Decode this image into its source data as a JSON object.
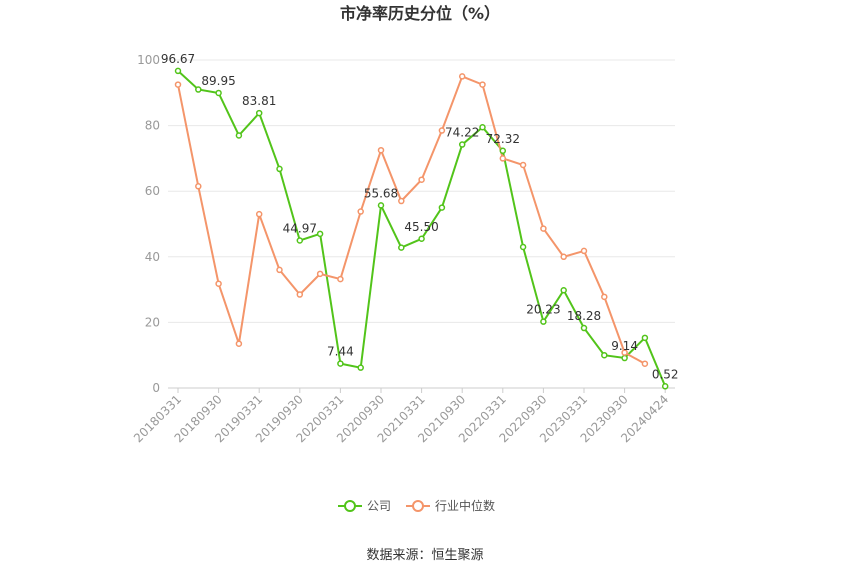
{
  "chart_data": {
    "type": "line",
    "title": "市净率历史分位（%）",
    "xlabel": "",
    "ylabel": "",
    "ylim": [
      0,
      100
    ],
    "yticks": [
      0,
      20,
      40,
      60,
      80,
      100
    ],
    "grid": true,
    "legend_position": "bottom",
    "x": [
      "20180331",
      "20180630",
      "20180930",
      "20181231",
      "20190331",
      "20190630",
      "20190930",
      "20191231",
      "20200331",
      "20200630",
      "20200930",
      "20201231",
      "20210331",
      "20210630",
      "20210930",
      "20211231",
      "20220331",
      "20220630",
      "20220930",
      "20221231",
      "20230331",
      "20230630",
      "20230930",
      "20231231",
      "20240424"
    ],
    "xticks": [
      "20180331",
      "20180930",
      "20190331",
      "20190930",
      "20200331",
      "20200930",
      "20210331",
      "20210930",
      "20220331",
      "20220930",
      "20230331",
      "20230930",
      "20240424"
    ],
    "series": [
      {
        "name": "公司",
        "color": "#52c41a",
        "values": [
          96.67,
          91.0,
          89.95,
          77.0,
          83.81,
          66.8,
          44.97,
          47.0,
          7.44,
          6.2,
          55.68,
          42.8,
          45.5,
          55.0,
          74.22,
          79.5,
          72.32,
          43.0,
          20.23,
          29.8,
          18.28,
          10.0,
          9.14,
          15.3,
          0.52
        ]
      },
      {
        "name": "行业中位数",
        "color": "#f4956a",
        "values": [
          92.5,
          61.5,
          31.8,
          13.5,
          53.0,
          36.0,
          28.5,
          34.8,
          33.2,
          53.8,
          72.5,
          57.0,
          63.5,
          78.5,
          95.0,
          92.5,
          70.0,
          68.0,
          48.6,
          40.0,
          41.8,
          27.8,
          10.8,
          7.4,
          null
        ]
      }
    ],
    "data_labels": [
      {
        "series": 0,
        "index": 0,
        "text": "96.67"
      },
      {
        "series": 0,
        "index": 2,
        "text": "89.95"
      },
      {
        "series": 0,
        "index": 4,
        "text": "83.81"
      },
      {
        "series": 0,
        "index": 6,
        "text": "44.97"
      },
      {
        "series": 0,
        "index": 8,
        "text": "7.44"
      },
      {
        "series": 0,
        "index": 10,
        "text": "55.68"
      },
      {
        "series": 0,
        "index": 12,
        "text": "45.50"
      },
      {
        "series": 0,
        "index": 14,
        "text": "74.22"
      },
      {
        "series": 0,
        "index": 16,
        "text": "72.32"
      },
      {
        "series": 0,
        "index": 18,
        "text": "20.23"
      },
      {
        "series": 0,
        "index": 20,
        "text": "18.28"
      },
      {
        "series": 0,
        "index": 22,
        "text": "9.14"
      },
      {
        "series": 0,
        "index": 24,
        "text": "0.52"
      }
    ]
  },
  "source_text": "数据来源：恒生聚源"
}
